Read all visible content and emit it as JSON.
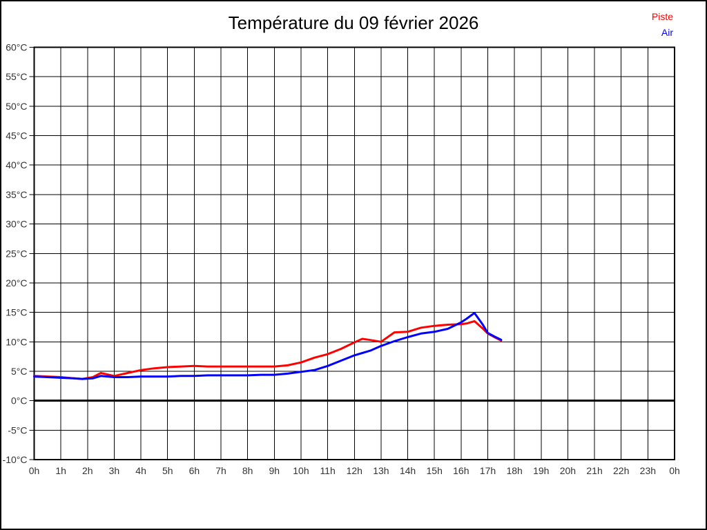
{
  "title": "Température du 09 février 2026",
  "legend": [
    {
      "label": "Piste",
      "color": "#ff0000"
    },
    {
      "label": "Air",
      "color": "#0000ff"
    }
  ],
  "colors": {
    "grid": "#000000",
    "frame": "#000000",
    "zero_line": "#000000",
    "tick_label": "#333333",
    "background": "#ffffff"
  },
  "chart_data": {
    "type": "line",
    "title": "Température du 09 février 2026",
    "xlabel": "",
    "ylabel": "",
    "xlim": [
      0,
      24
    ],
    "ylim": [
      -10,
      60
    ],
    "y_tick_step": 5,
    "grid": true,
    "zero_line_at": 0,
    "legend_position": "top-right",
    "x_tick_labels": [
      "0h",
      "1h",
      "2h",
      "3h",
      "4h",
      "5h",
      "6h",
      "7h",
      "8h",
      "9h",
      "10h",
      "11h",
      "12h",
      "13h",
      "14h",
      "15h",
      "16h",
      "17h",
      "18h",
      "19h",
      "20h",
      "21h",
      "22h",
      "23h",
      "0h"
    ],
    "y_tick_labels": [
      "60°C",
      "55°C",
      "50°C",
      "45°C",
      "40°C",
      "35°C",
      "30°C",
      "25°C",
      "20°C",
      "15°C",
      "10°C",
      "5°C",
      "0°C",
      "-5°C",
      "-10°C"
    ],
    "x": [
      0,
      0.5,
      1,
      1.5,
      1.8,
      2.2,
      2.5,
      3,
      3.5,
      4,
      4.5,
      5,
      5.5,
      6,
      6.5,
      7,
      7.5,
      8,
      8.5,
      9,
      9.5,
      10,
      10.5,
      11,
      11.5,
      12,
      12.3,
      12.6,
      13,
      13.5,
      14,
      14.5,
      15,
      15.5,
      16,
      16.2,
      16.5,
      16.8,
      17,
      17.25,
      17.5
    ],
    "series": [
      {
        "name": "Piste",
        "color": "#ff0000",
        "values": [
          4.2,
          4.1,
          4.0,
          3.8,
          3.7,
          4.0,
          4.7,
          4.2,
          4.7,
          5.2,
          5.5,
          5.7,
          5.8,
          5.9,
          5.8,
          5.8,
          5.8,
          5.8,
          5.8,
          5.8,
          6.0,
          6.5,
          7.3,
          7.9,
          8.8,
          9.9,
          10.5,
          10.3,
          10.0,
          11.6,
          11.7,
          12.4,
          12.7,
          12.9,
          13.0,
          13.1,
          13.5,
          12.3,
          11.4,
          10.8,
          10.2
        ]
      },
      {
        "name": "Air",
        "color": "#0000ff",
        "values": [
          4.1,
          4.0,
          3.9,
          3.8,
          3.7,
          3.8,
          4.2,
          4.0,
          4.0,
          4.1,
          4.1,
          4.1,
          4.2,
          4.2,
          4.3,
          4.3,
          4.3,
          4.3,
          4.4,
          4.4,
          4.6,
          4.9,
          5.2,
          5.9,
          6.8,
          7.7,
          8.1,
          8.5,
          9.3,
          10.1,
          10.8,
          11.4,
          11.7,
          12.2,
          13.3,
          13.9,
          14.9,
          13.0,
          11.5,
          10.9,
          10.35
        ]
      }
    ]
  }
}
